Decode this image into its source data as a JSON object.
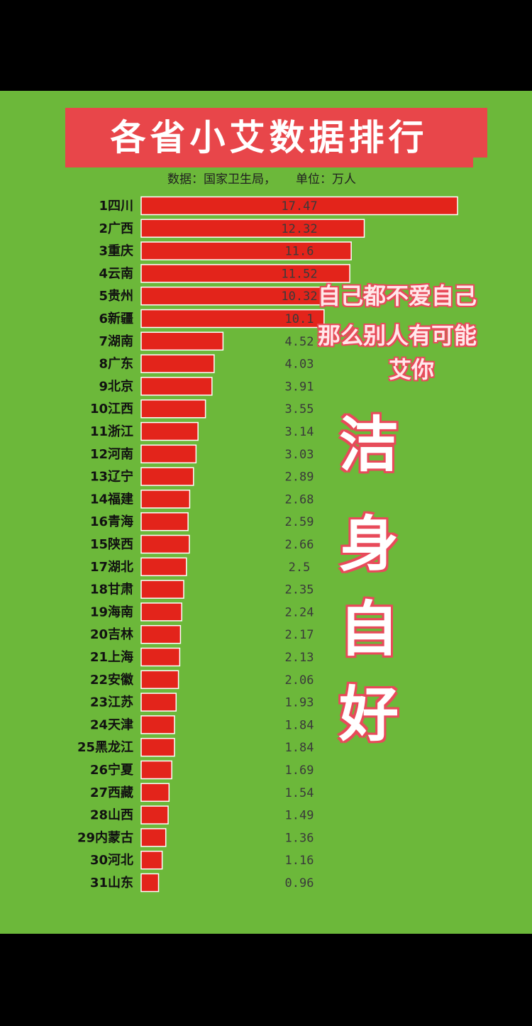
{
  "title": "各省小艾数据排行",
  "source_label": "数据：国家卫生局，",
  "unit_label": "单位：万人",
  "overlay": {
    "line1": "自己都不爱自己",
    "line2": "那么别人有可能",
    "line3": "艾你",
    "big": [
      "洁",
      "身",
      "自",
      "好"
    ]
  },
  "colors": {
    "background": "#6cb83a",
    "bar": "#e3241b",
    "title_bg": "#e8464a",
    "accent_text": "#e84a5a"
  },
  "chart_data": {
    "type": "bar",
    "orientation": "horizontal",
    "categories": [
      "1四川",
      "2广西",
      "3重庆",
      "4云南",
      "5贵州",
      "6新疆",
      "7湖南",
      "8广东",
      "9北京",
      "10江西",
      "11浙江",
      "12河南",
      "13辽宁",
      "14福建",
      "16青海",
      "15陕西",
      "17湖北",
      "18甘肃",
      "19海南",
      "20吉林",
      "21上海",
      "22安徽",
      "23江苏",
      "24天津",
      "25黑龙江",
      "26宁夏",
      "27西藏",
      "28山西",
      "29内蒙古",
      "30河北",
      "31山东"
    ],
    "values": [
      17.47,
      12.32,
      11.6,
      11.52,
      10.32,
      10.1,
      4.52,
      4.03,
      3.91,
      3.55,
      3.14,
      3.03,
      2.89,
      2.68,
      2.59,
      2.66,
      2.5,
      2.35,
      2.24,
      2.17,
      2.13,
      2.06,
      1.93,
      1.84,
      1.84,
      1.69,
      1.54,
      1.49,
      1.36,
      1.16,
      0.96
    ],
    "value_labels": [
      "17.47",
      "12.32",
      "11.6",
      "11.52",
      "10.32",
      "10.1",
      "4.52",
      "4.03",
      "3.91",
      "3.55",
      "3.14",
      "3.03",
      "2.89",
      "2.68",
      "2.59",
      "2.66",
      "2.5",
      "2.35",
      "2.24",
      "2.17",
      "2.13",
      "2.06",
      "1.93",
      "1.84",
      "1.84",
      "1.69",
      "1.54",
      "1.49",
      "1.36",
      "1.16",
      "0.96"
    ],
    "title": "各省小艾数据排行",
    "xlabel": "",
    "ylabel": "",
    "xlim": [
      0,
      17.47
    ],
    "grid": false,
    "legend": "none"
  }
}
